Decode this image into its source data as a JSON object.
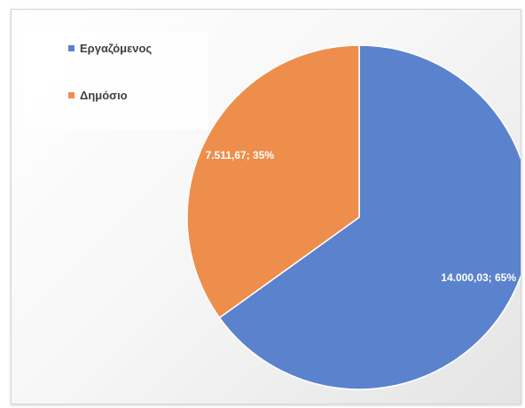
{
  "chart_data": {
    "type": "pie",
    "categories": [
      "Εργαζόμενος",
      "Δημόσιο"
    ],
    "values": [
      14000.03,
      7511.67
    ],
    "data_labels": [
      "14.000,03; 65%",
      "7.511,67; 35%"
    ],
    "colors": [
      "#5B82CC",
      "#EE8E4C"
    ],
    "legend": "top-left",
    "start_angle_deg": 0
  }
}
